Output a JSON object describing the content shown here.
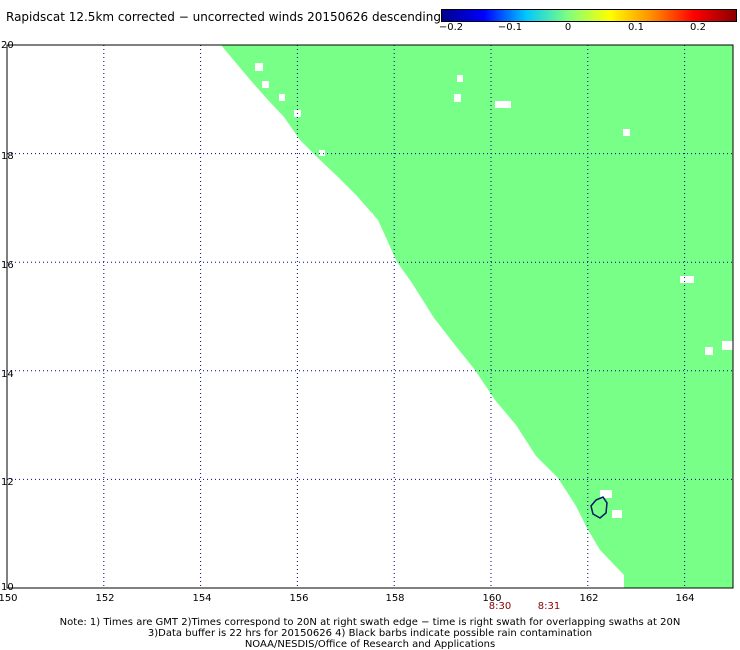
{
  "title": "Rapidscat 12.5km corrected − uncorrected winds 20150626 descending",
  "colorbar": {
    "ticks": [
      "−0.2",
      "−0.1",
      "0",
      "0.1",
      "0.2"
    ],
    "tick_values": [
      -0.2,
      -0.1,
      0,
      0.1,
      0.2
    ],
    "colors": [
      "#00008b",
      "#0000ff",
      "#00c8ff",
      "#7fff7f",
      "#ffff00",
      "#ff8c00",
      "#ff0000",
      "#8b0000"
    ]
  },
  "map": {
    "lon_range": [
      150,
      165
    ],
    "lat_range": [
      10,
      20
    ],
    "lon_ticks": [
      "150",
      "152",
      "154",
      "156",
      "158",
      "160",
      "162",
      "164"
    ],
    "lat_ticks": [
      "20",
      "18",
      "16",
      "14",
      "12",
      "10"
    ],
    "fill_color": "#77ff88",
    "swath_value": 0,
    "time_labels": [
      "8:30",
      "8:31"
    ]
  },
  "notes": {
    "line1": "Note: 1) Times are GMT 2)Times correspond to 20N at right swath edge − time is right swath for overlapping swaths at 20N",
    "line2": "3)Data buffer is 22 hrs for 20150626 4) Black barbs indicate possible rain contamination",
    "line3": "NOAA/NESDIS/Office of Research and Applications"
  }
}
